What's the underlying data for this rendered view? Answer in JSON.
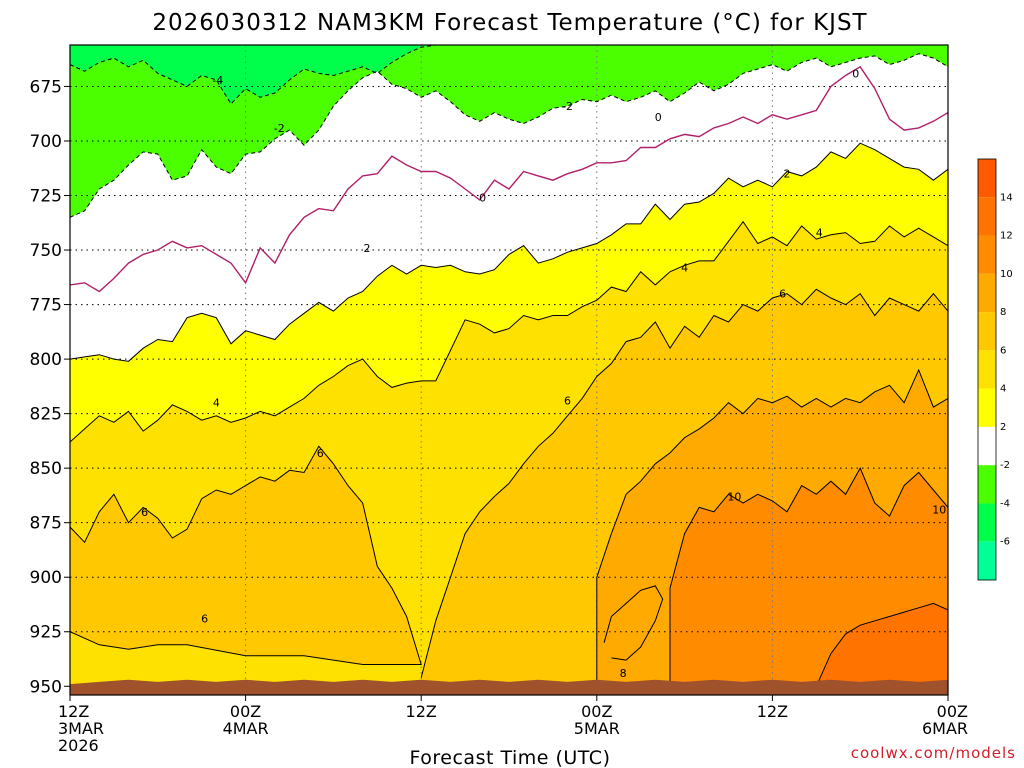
{
  "title": "2026030312 NAM3KM Forecast Temperature (°C) for KJST",
  "credit": "coolwx.com/models",
  "colors": {
    "t_lt_-6": "#00ff96",
    "t_-6_-4": "#00ff4b",
    "t_-4_-2": "#4bff00",
    "t_-2_2": "#ffffff",
    "t_2_4": "#ffff00",
    "t_4_6": "#ffe100",
    "t_6_8": "#ffc800",
    "t_8_10": "#ffaa00",
    "t_10_12": "#ff8c00",
    "t_12_14": "#ff7300",
    "t_gt_14": "#ff5a00",
    "ground": "#a0522d",
    "zero_line": "#b0206a"
  },
  "chart_data": {
    "type": "heatmap",
    "title": "2026030312 NAM3KM Forecast Temperature (°C) for KJST",
    "xlabel": "Forecast Time (UTC)",
    "ylabel": "Pressure (hPa)",
    "x_ticks": [
      {
        "hour": 0,
        "lines": [
          "12Z",
          "3MAR",
          "2026"
        ]
      },
      {
        "hour": 12,
        "lines": [
          "00Z",
          "4MAR"
        ]
      },
      {
        "hour": 24,
        "lines": [
          "12Z"
        ]
      },
      {
        "hour": 36,
        "lines": [
          "00Z",
          "5MAR"
        ]
      },
      {
        "hour": 48,
        "lines": [
          "12Z"
        ]
      },
      {
        "hour": 60,
        "lines": [
          "00Z",
          "6MAR"
        ]
      }
    ],
    "xlim": [
      0,
      60
    ],
    "y_ticks": [
      675,
      700,
      725,
      750,
      775,
      800,
      825,
      850,
      875,
      900,
      925,
      950
    ],
    "ylim": [
      954,
      656
    ],
    "colorbar": {
      "labels": [
        14,
        12,
        10,
        8,
        6,
        4,
        2,
        -2,
        -4,
        -6
      ],
      "bounds": [
        -8,
        -6,
        -4,
        -2,
        2,
        4,
        6,
        8,
        10,
        12,
        14,
        16
      ]
    },
    "contour_levels": [
      -4,
      -2,
      0,
      2,
      4,
      6,
      8,
      10
    ],
    "contour_labels": [
      {
        "value": "-4",
        "hour": 10.1,
        "p": 672
      },
      {
        "value": "-2",
        "hour": 14.3,
        "p": 694
      },
      {
        "value": "-2",
        "hour": 34.0,
        "p": 684
      },
      {
        "value": "0",
        "hour": 28.2,
        "p": 726
      },
      {
        "value": "0",
        "hour": 40.2,
        "p": 689
      },
      {
        "value": "0",
        "hour": 53.7,
        "p": 669
      },
      {
        "value": "2",
        "hour": 20.3,
        "p": 749
      },
      {
        "value": "2",
        "hour": 49.0,
        "p": 715
      },
      {
        "value": "4",
        "hour": 10.0,
        "p": 820
      },
      {
        "value": "4",
        "hour": 42.0,
        "p": 758
      },
      {
        "value": "4",
        "hour": 51.2,
        "p": 742
      },
      {
        "value": "6",
        "hour": 5.1,
        "p": 870
      },
      {
        "value": "6",
        "hour": 17.1,
        "p": 843
      },
      {
        "value": "6",
        "hour": 9.2,
        "p": 919
      },
      {
        "value": "6",
        "hour": 34.0,
        "p": 819
      },
      {
        "value": "6",
        "hour": 48.7,
        "p": 770
      },
      {
        "value": "8",
        "hour": 37.8,
        "p": 944
      },
      {
        "value": "10",
        "hour": 45.4,
        "p": 863
      },
      {
        "value": "10",
        "hour": 59.4,
        "p": 869
      }
    ],
    "isotherms": [
      {
        "name": "-4",
        "points": [
          [
            0,
            665
          ],
          [
            1,
            668
          ],
          [
            2,
            664
          ],
          [
            3,
            662
          ],
          [
            4,
            666
          ],
          [
            5,
            663
          ],
          [
            6,
            669
          ],
          [
            7,
            672
          ],
          [
            8,
            675
          ],
          [
            9,
            670
          ],
          [
            10,
            672
          ],
          [
            11,
            683
          ],
          [
            12,
            676
          ],
          [
            13,
            680
          ],
          [
            14,
            678
          ],
          [
            15,
            672
          ],
          [
            16,
            667
          ],
          [
            17,
            669
          ],
          [
            18,
            670
          ],
          [
            19,
            668
          ],
          [
            20,
            666
          ],
          [
            21,
            669
          ],
          [
            22,
            664
          ],
          [
            23,
            660
          ],
          [
            24,
            657
          ],
          [
            25,
            656
          ]
        ]
      },
      {
        "name": "-2",
        "points": [
          [
            0,
            735
          ],
          [
            1,
            732
          ],
          [
            2,
            722
          ],
          [
            3,
            718
          ],
          [
            4,
            711
          ],
          [
            5,
            705
          ],
          [
            6,
            706
          ],
          [
            7,
            718
          ],
          [
            8,
            716
          ],
          [
            9,
            704
          ],
          [
            10,
            712
          ],
          [
            11,
            715
          ],
          [
            12,
            706
          ],
          [
            13,
            705
          ],
          [
            14,
            699
          ],
          [
            15,
            695
          ],
          [
            16,
            702
          ],
          [
            17,
            695
          ],
          [
            18,
            684
          ],
          [
            19,
            677
          ],
          [
            20,
            671
          ],
          [
            21,
            668
          ],
          [
            22,
            674
          ],
          [
            23,
            676
          ],
          [
            24,
            680
          ],
          [
            25,
            677
          ],
          [
            26,
            682
          ],
          [
            27,
            688
          ],
          [
            28,
            691
          ],
          [
            29,
            687
          ],
          [
            30,
            690
          ],
          [
            31,
            692
          ],
          [
            32,
            689
          ],
          [
            33,
            685
          ],
          [
            34,
            684
          ],
          [
            35,
            681
          ],
          [
            36,
            682
          ],
          [
            37,
            679
          ],
          [
            38,
            682
          ],
          [
            39,
            680
          ],
          [
            40,
            677
          ],
          [
            41,
            682
          ],
          [
            42,
            678
          ],
          [
            43,
            673
          ],
          [
            44,
            677
          ],
          [
            45,
            674
          ],
          [
            46,
            669
          ],
          [
            47,
            667
          ],
          [
            48,
            665
          ],
          [
            49,
            668
          ],
          [
            50,
            664
          ],
          [
            51,
            662
          ],
          [
            52,
            666
          ],
          [
            53,
            664
          ],
          [
            54,
            662
          ],
          [
            55,
            661
          ],
          [
            56,
            665
          ],
          [
            57,
            663
          ],
          [
            58,
            660
          ],
          [
            59,
            662
          ],
          [
            60,
            666
          ]
        ]
      },
      {
        "name": "0",
        "points": [
          [
            0,
            766
          ],
          [
            1,
            765
          ],
          [
            2,
            769
          ],
          [
            3,
            763
          ],
          [
            4,
            756
          ],
          [
            5,
            752
          ],
          [
            6,
            750
          ],
          [
            7,
            746
          ],
          [
            8,
            749
          ],
          [
            9,
            748
          ],
          [
            10,
            752
          ],
          [
            11,
            756
          ],
          [
            12,
            765
          ],
          [
            13,
            749
          ],
          [
            14,
            756
          ],
          [
            15,
            743
          ],
          [
            16,
            735
          ],
          [
            17,
            731
          ],
          [
            18,
            732
          ],
          [
            19,
            722
          ],
          [
            20,
            716
          ],
          [
            21,
            715
          ],
          [
            22,
            707
          ],
          [
            23,
            711
          ],
          [
            24,
            714
          ],
          [
            25,
            714
          ],
          [
            26,
            717
          ],
          [
            27,
            722
          ],
          [
            28,
            727
          ],
          [
            29,
            718
          ],
          [
            30,
            722
          ],
          [
            31,
            714
          ],
          [
            32,
            716
          ],
          [
            33,
            718
          ],
          [
            34,
            715
          ],
          [
            35,
            713
          ],
          [
            36,
            710
          ],
          [
            37,
            710
          ],
          [
            38,
            709
          ],
          [
            39,
            703
          ],
          [
            40,
            703
          ],
          [
            41,
            699
          ],
          [
            42,
            697
          ],
          [
            43,
            698
          ],
          [
            44,
            694
          ],
          [
            45,
            692
          ],
          [
            46,
            689
          ],
          [
            47,
            692
          ],
          [
            48,
            688
          ],
          [
            49,
            690
          ],
          [
            50,
            688
          ],
          [
            51,
            686
          ],
          [
            52,
            675
          ],
          [
            53,
            670
          ],
          [
            54,
            666
          ],
          [
            55,
            676
          ],
          [
            56,
            690
          ],
          [
            57,
            695
          ],
          [
            58,
            694
          ],
          [
            59,
            691
          ],
          [
            60,
            687
          ]
        ]
      },
      {
        "name": "2",
        "points": [
          [
            0,
            800
          ],
          [
            1,
            799
          ],
          [
            2,
            798
          ],
          [
            3,
            800
          ],
          [
            4,
            801
          ],
          [
            5,
            795
          ],
          [
            6,
            791
          ],
          [
            7,
            792
          ],
          [
            8,
            781
          ],
          [
            9,
            779
          ],
          [
            10,
            781
          ],
          [
            11,
            793
          ],
          [
            12,
            787
          ],
          [
            13,
            789
          ],
          [
            14,
            791
          ],
          [
            15,
            784
          ],
          [
            16,
            779
          ],
          [
            17,
            774
          ],
          [
            18,
            778
          ],
          [
            19,
            772
          ],
          [
            20,
            769
          ],
          [
            21,
            762
          ],
          [
            22,
            757
          ],
          [
            23,
            761
          ],
          [
            24,
            757
          ],
          [
            25,
            758
          ],
          [
            26,
            757
          ],
          [
            27,
            760
          ],
          [
            28,
            761
          ],
          [
            29,
            759
          ],
          [
            30,
            752
          ],
          [
            31,
            748
          ],
          [
            32,
            756
          ],
          [
            33,
            754
          ],
          [
            34,
            751
          ],
          [
            35,
            749
          ],
          [
            36,
            747
          ],
          [
            37,
            743
          ],
          [
            38,
            738
          ],
          [
            39,
            738
          ],
          [
            40,
            729
          ],
          [
            41,
            736
          ],
          [
            42,
            729
          ],
          [
            43,
            728
          ],
          [
            44,
            724
          ],
          [
            45,
            717
          ],
          [
            46,
            721
          ],
          [
            47,
            718
          ],
          [
            48,
            721
          ],
          [
            49,
            714
          ],
          [
            50,
            716
          ],
          [
            51,
            712
          ],
          [
            52,
            705
          ],
          [
            53,
            708
          ],
          [
            54,
            701
          ],
          [
            55,
            704
          ],
          [
            56,
            708
          ],
          [
            57,
            712
          ],
          [
            58,
            713
          ],
          [
            59,
            718
          ],
          [
            60,
            713
          ]
        ]
      },
      {
        "name": "4",
        "points": [
          [
            0,
            838
          ],
          [
            1,
            832
          ],
          [
            2,
            826
          ],
          [
            3,
            829
          ],
          [
            4,
            824
          ],
          [
            5,
            833
          ],
          [
            6,
            828
          ],
          [
            7,
            821
          ],
          [
            8,
            824
          ],
          [
            9,
            828
          ],
          [
            10,
            826
          ],
          [
            11,
            829
          ],
          [
            12,
            827
          ],
          [
            13,
            824
          ],
          [
            14,
            826
          ],
          [
            15,
            822
          ],
          [
            16,
            818
          ],
          [
            17,
            812
          ],
          [
            18,
            808
          ],
          [
            19,
            803
          ],
          [
            20,
            800
          ],
          [
            21,
            808
          ],
          [
            22,
            813
          ],
          [
            23,
            811
          ],
          [
            24,
            810
          ],
          [
            25,
            810
          ],
          [
            26,
            796
          ],
          [
            27,
            782
          ],
          [
            28,
            784
          ],
          [
            29,
            788
          ],
          [
            30,
            786
          ],
          [
            31,
            780
          ],
          [
            32,
            782
          ],
          [
            33,
            780
          ],
          [
            34,
            780
          ],
          [
            35,
            776
          ],
          [
            36,
            773
          ],
          [
            37,
            767
          ],
          [
            38,
            769
          ],
          [
            39,
            760
          ],
          [
            40,
            766
          ],
          [
            41,
            760
          ],
          [
            42,
            757
          ],
          [
            43,
            755
          ],
          [
            44,
            755
          ],
          [
            45,
            746
          ],
          [
            46,
            737
          ],
          [
            47,
            747
          ],
          [
            48,
            744
          ],
          [
            49,
            748
          ],
          [
            50,
            739
          ],
          [
            51,
            745
          ],
          [
            52,
            743
          ],
          [
            53,
            742
          ],
          [
            54,
            747
          ],
          [
            55,
            746
          ],
          [
            56,
            739
          ],
          [
            57,
            744
          ],
          [
            58,
            740
          ],
          [
            59,
            744
          ],
          [
            60,
            748
          ]
        ]
      }
    ],
    "ground_level_hPa": 947
  },
  "xtick_labels": [
    "12Z",
    "3MAR",
    "2026",
    "00Z",
    "4MAR",
    "12Z",
    "00Z",
    "5MAR",
    "12Z",
    "00Z",
    "6MAR"
  ],
  "ytick_labels": [
    "675",
    "700",
    "725",
    "750",
    "775",
    "800",
    "825",
    "850",
    "875",
    "900",
    "925",
    "950"
  ],
  "colorbar_labels": [
    "14",
    "12",
    "10",
    "8",
    "6",
    "4",
    "2",
    "-2",
    "-4",
    "-6"
  ]
}
